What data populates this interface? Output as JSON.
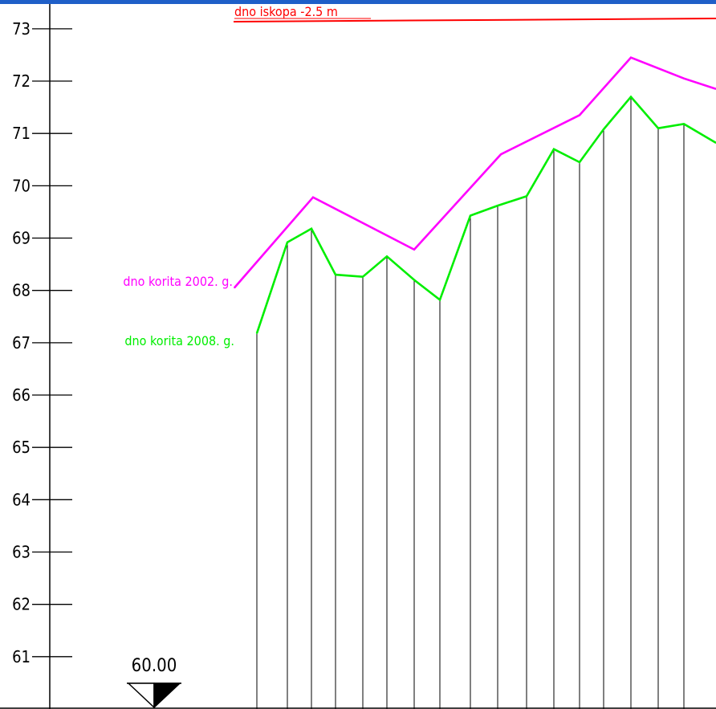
{
  "chart_data": {
    "type": "line",
    "ylim": [
      60,
      73.55
    ],
    "xlim": [
      0,
      892
    ],
    "y_ticks": [
      "61",
      "62",
      "63",
      "64",
      "65",
      "66",
      "67",
      "68",
      "69",
      "70",
      "71",
      "72",
      "73"
    ],
    "grid": false,
    "reference_line": {
      "label": "dno iskopa -2.5 m",
      "color": "#ff0000"
    },
    "datum": {
      "label": "60.00",
      "value": 60.0
    },
    "series": [
      {
        "name": "dno korita 2002. g.",
        "color": "#ff00ff",
        "points": [
          [
            292,
            68.05
          ],
          [
            390,
            69.78
          ],
          [
            516,
            68.78
          ],
          [
            624,
            70.6
          ],
          [
            722,
            71.35
          ],
          [
            786,
            72.45
          ],
          [
            852,
            72.05
          ],
          [
            892,
            71.85
          ]
        ]
      },
      {
        "name": "dno korita 2008. g.",
        "color": "#00ee00",
        "points": [
          [
            320,
            67.18
          ],
          [
            358,
            68.92
          ],
          [
            388,
            69.18
          ],
          [
            418,
            68.3
          ],
          [
            452,
            68.26
          ],
          [
            482,
            68.65
          ],
          [
            516,
            68.2
          ],
          [
            548,
            67.82
          ],
          [
            586,
            69.43
          ],
          [
            620,
            69.62
          ],
          [
            656,
            69.8
          ],
          [
            690,
            70.7
          ],
          [
            722,
            70.45
          ],
          [
            752,
            71.08
          ],
          [
            786,
            71.7
          ],
          [
            820,
            71.1
          ],
          [
            852,
            71.18
          ],
          [
            892,
            70.82
          ]
        ]
      }
    ],
    "drop_lines_from_series": "dno korita 2008. g."
  }
}
